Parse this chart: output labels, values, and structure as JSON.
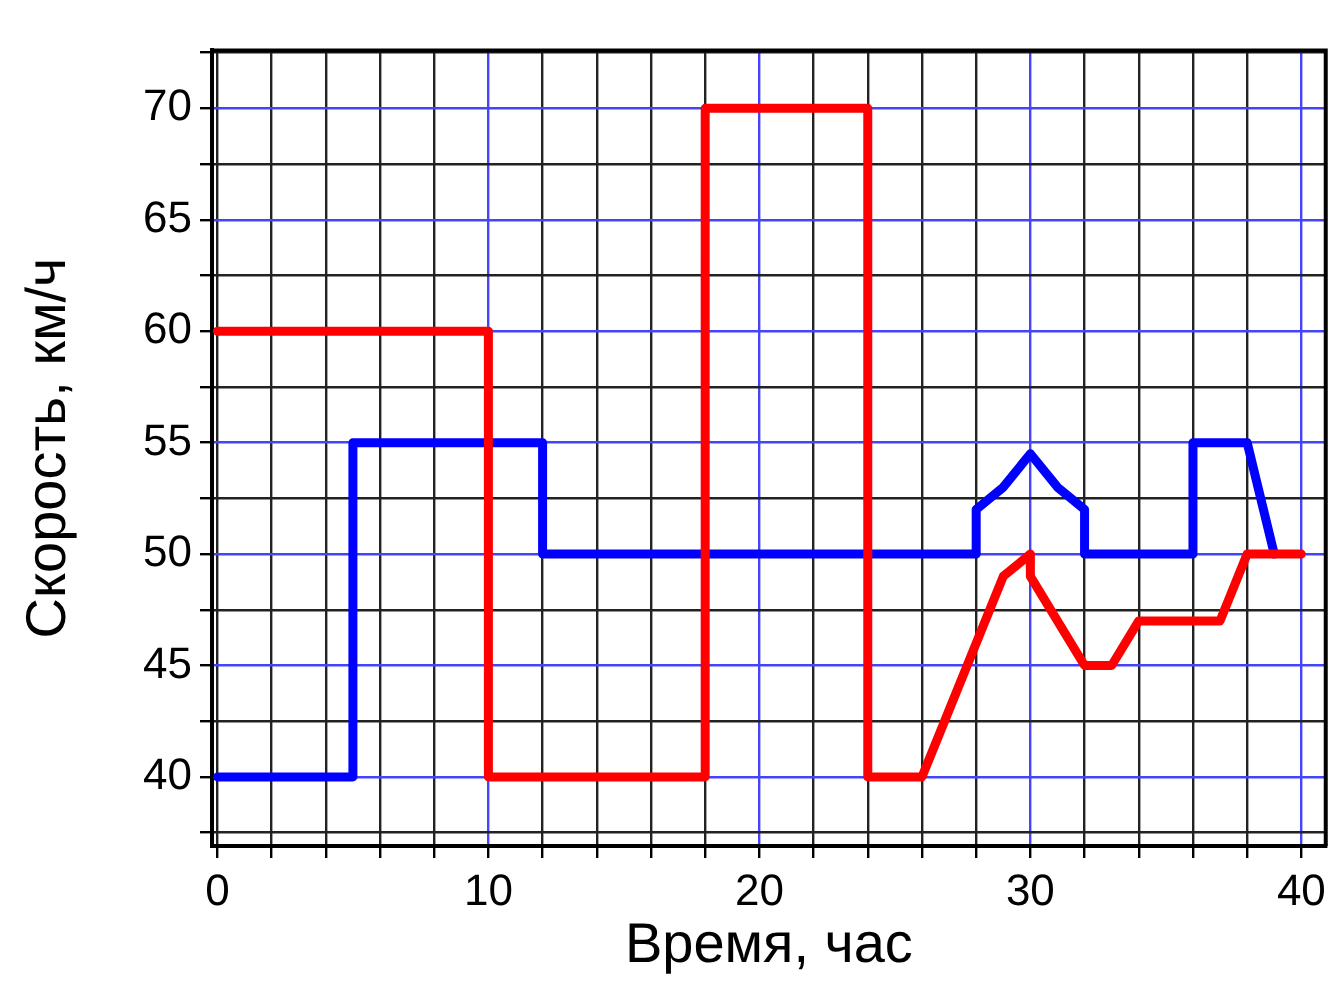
{
  "chart_data": {
    "type": "line",
    "xlabel": "Время, час",
    "ylabel": "Скорость, км/ч",
    "xlim": [
      -0.2,
      40.9
    ],
    "ylim": [
      36.9,
      72.6
    ],
    "xticks": [
      0,
      {
        "value": 2,
        "label": null
      },
      {
        "value": 4,
        "label": null
      },
      {
        "value": 6,
        "label": null
      },
      {
        "value": 8,
        "label": null
      },
      10,
      {
        "value": 12,
        "label": null
      },
      {
        "value": 14,
        "label": null
      },
      {
        "value": 16,
        "label": null
      },
      {
        "value": 18,
        "label": null
      },
      20,
      {
        "value": 22,
        "label": null
      },
      {
        "value": 24,
        "label": null
      },
      {
        "value": 26,
        "label": null
      },
      {
        "value": 28,
        "label": null
      },
      30,
      {
        "value": 32,
        "label": null
      },
      {
        "value": 34,
        "label": null
      },
      {
        "value": 36,
        "label": null
      },
      {
        "value": 38,
        "label": null
      },
      40
    ],
    "yticks": [
      {
        "value": 37.5,
        "label": null
      },
      40,
      {
        "value": 42.5,
        "label": null
      },
      45,
      {
        "value": 47.5,
        "label": null
      },
      50,
      {
        "value": 52.5,
        "label": null
      },
      55,
      {
        "value": 57.5,
        "label": null
      },
      60,
      {
        "value": 62.5,
        "label": null
      },
      65,
      {
        "value": 67.5,
        "label": null
      },
      70,
      {
        "value": 72.5,
        "label": null
      }
    ],
    "grid": true,
    "marker": "none",
    "line_style": "solid",
    "series": [
      {
        "color": "#0000ff",
        "x": [
          0,
          5,
          5,
          12,
          12,
          28,
          28,
          29,
          30,
          31,
          32,
          32,
          36,
          36,
          38,
          39
        ],
        "values": [
          40,
          40,
          55,
          55,
          50,
          50,
          52,
          53,
          54.5,
          53,
          52,
          50,
          50,
          55,
          55,
          50
        ]
      },
      {
        "color": "#ff0000",
        "x": [
          0,
          10,
          10,
          18,
          18,
          24,
          24,
          26,
          29,
          30,
          30,
          32,
          33,
          34,
          37,
          38,
          40
        ],
        "values": [
          60,
          60,
          40,
          40,
          70,
          70,
          40,
          40,
          49,
          50,
          49,
          45,
          45,
          47,
          47,
          50,
          50
        ]
      }
    ]
  }
}
